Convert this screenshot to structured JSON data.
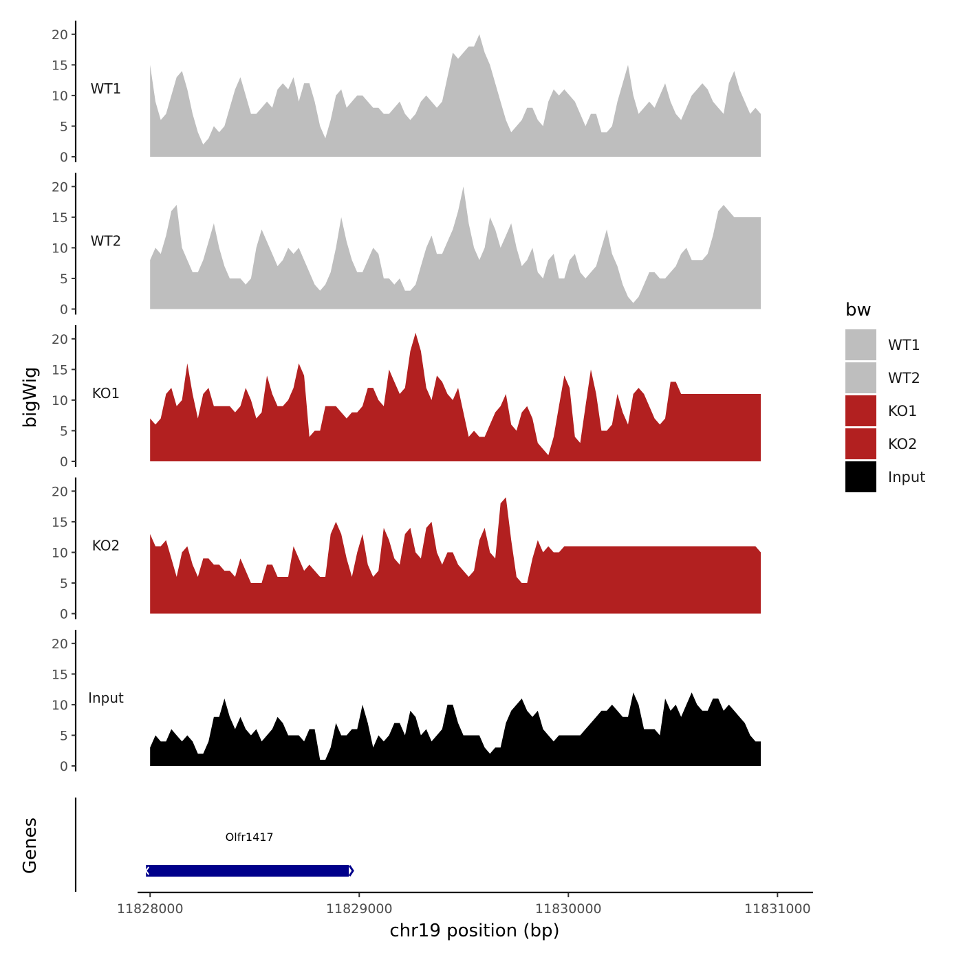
{
  "chart_data": {
    "type": "area",
    "title": "",
    "ylabel": "bigWig",
    "xlabel": "chr19 position (bp)",
    "genes_label": "Genes",
    "ylim": [
      0,
      22
    ],
    "yticks": [
      0,
      5,
      10,
      15,
      20
    ],
    "xlim": [
      11827940,
      11831170
    ],
    "xticks": [
      11828000,
      11829000,
      11830000,
      11831000
    ],
    "xtick_labels": [
      "11828000",
      "11829000",
      "11830000",
      "11831000"
    ],
    "legend": {
      "title": "bw",
      "position": "right",
      "items": [
        {
          "label": "WT1",
          "color": "#bebebe"
        },
        {
          "label": "WT2",
          "color": "#bebebe"
        },
        {
          "label": "KO1",
          "color": "#b22020"
        },
        {
          "label": "KO2",
          "color": "#b22020"
        },
        {
          "label": "Input",
          "color": "#000000"
        }
      ]
    },
    "series": [
      {
        "name": "WT1",
        "color": "#bebebe",
        "x_start": 11828000,
        "x_end": 11830920,
        "values": [
          15,
          9,
          6,
          7,
          10,
          13,
          14,
          11,
          7,
          4,
          2,
          3,
          5,
          4,
          5,
          8,
          11,
          13,
          10,
          7,
          7,
          8,
          9,
          8,
          11,
          12,
          11,
          13,
          9,
          12,
          12,
          9,
          5,
          3,
          6,
          10,
          11,
          8,
          9,
          10,
          10,
          9,
          8,
          8,
          7,
          7,
          8,
          9,
          7,
          6,
          7,
          9,
          10,
          9,
          8,
          9,
          13,
          17,
          16,
          17,
          18,
          18,
          20,
          17,
          15,
          12,
          9,
          6,
          4,
          5,
          6,
          8,
          8,
          6,
          5,
          9,
          11,
          10,
          11,
          10,
          9,
          7,
          5,
          7,
          7,
          4,
          4,
          5,
          9,
          12,
          15,
          10,
          7,
          8,
          9,
          8,
          10,
          12,
          9,
          7,
          6,
          8,
          10,
          11,
          12,
          11,
          9,
          8,
          7,
          12,
          14,
          11,
          9,
          7,
          8,
          7
        ]
      },
      {
        "name": "WT2",
        "color": "#bebebe",
        "x_start": 11828000,
        "x_end": 11830920,
        "values": [
          8,
          10,
          9,
          12,
          16,
          17,
          10,
          8,
          6,
          6,
          8,
          11,
          14,
          10,
          7,
          5,
          5,
          5,
          4,
          5,
          10,
          13,
          11,
          9,
          7,
          8,
          10,
          9,
          10,
          8,
          6,
          4,
          3,
          4,
          6,
          10,
          15,
          11,
          8,
          6,
          6,
          8,
          10,
          9,
          5,
          5,
          4,
          5,
          3,
          3,
          4,
          7,
          10,
          12,
          9,
          9,
          11,
          13,
          16,
          20,
          14,
          10,
          8,
          10,
          15,
          13,
          10,
          12,
          14,
          10,
          7,
          8,
          10,
          6,
          5,
          8,
          9,
          5,
          5,
          8,
          9,
          6,
          5,
          6,
          7,
          10,
          13,
          9,
          7,
          4,
          2,
          1,
          2,
          4,
          6,
          6,
          5,
          5,
          6,
          7,
          9,
          10,
          8,
          8,
          8,
          9,
          12,
          16,
          17,
          16,
          15,
          15,
          15,
          15,
          15,
          15
        ]
      },
      {
        "name": "KO1",
        "color": "#b22020",
        "x_start": 11828000,
        "x_end": 11830920,
        "values": [
          7,
          6,
          7,
          11,
          12,
          9,
          10,
          16,
          11,
          7,
          11,
          12,
          9,
          9,
          9,
          9,
          8,
          9,
          12,
          10,
          7,
          8,
          14,
          11,
          9,
          9,
          10,
          12,
          16,
          14,
          4,
          5,
          5,
          9,
          9,
          9,
          8,
          7,
          8,
          8,
          9,
          12,
          12,
          10,
          9,
          15,
          13,
          11,
          12,
          18,
          21,
          18,
          12,
          10,
          14,
          13,
          11,
          10,
          12,
          8,
          4,
          5,
          4,
          4,
          6,
          8,
          9,
          11,
          6,
          5,
          8,
          9,
          7,
          3,
          2,
          1,
          4,
          9,
          14,
          12,
          4,
          3,
          9,
          15,
          11,
          5,
          5,
          6,
          11,
          8,
          6,
          11,
          12,
          11,
          9,
          7,
          6,
          7,
          13,
          13,
          11,
          11,
          11,
          11,
          11,
          11,
          11,
          11,
          11,
          11,
          11,
          11,
          11,
          11,
          11,
          11
        ]
      },
      {
        "name": "KO2",
        "color": "#b22020",
        "x_start": 11828000,
        "x_end": 11830920,
        "values": [
          13,
          11,
          11,
          12,
          9,
          6,
          10,
          11,
          8,
          6,
          9,
          9,
          8,
          8,
          7,
          7,
          6,
          9,
          7,
          5,
          5,
          5,
          8,
          8,
          6,
          6,
          6,
          11,
          9,
          7,
          8,
          7,
          6,
          6,
          13,
          15,
          13,
          9,
          6,
          10,
          13,
          8,
          6,
          7,
          14,
          12,
          9,
          8,
          13,
          14,
          10,
          9,
          14,
          15,
          10,
          8,
          10,
          10,
          8,
          7,
          6,
          7,
          12,
          14,
          10,
          9,
          18,
          19,
          12,
          6,
          5,
          5,
          9,
          12,
          10,
          11,
          10,
          10,
          11,
          11,
          11,
          11,
          11,
          11,
          11,
          11,
          11,
          11,
          11,
          11,
          11,
          11,
          11,
          11,
          11,
          11,
          11,
          11,
          11,
          11,
          11,
          11,
          11,
          11,
          11,
          11,
          11,
          11,
          11,
          11,
          11,
          11,
          11,
          11,
          11,
          10
        ]
      },
      {
        "name": "Input",
        "color": "#000000",
        "x_start": 11828000,
        "x_end": 11830920,
        "values": [
          3,
          5,
          4,
          4,
          6,
          5,
          4,
          5,
          4,
          2,
          2,
          4,
          8,
          8,
          11,
          8,
          6,
          8,
          6,
          5,
          6,
          4,
          5,
          6,
          8,
          7,
          5,
          5,
          5,
          4,
          6,
          6,
          1,
          1,
          3,
          7,
          5,
          5,
          6,
          6,
          10,
          7,
          3,
          5,
          4,
          5,
          7,
          7,
          5,
          9,
          8,
          5,
          6,
          4,
          5,
          6,
          10,
          10,
          7,
          5,
          5,
          5,
          5,
          3,
          2,
          3,
          3,
          7,
          9,
          10,
          11,
          9,
          8,
          9,
          6,
          5,
          4,
          5,
          5,
          5,
          5,
          5,
          6,
          7,
          8,
          9,
          9,
          10,
          9,
          8,
          8,
          12,
          10,
          6,
          6,
          6,
          5,
          11,
          9,
          10,
          8,
          10,
          12,
          10,
          9,
          9,
          11,
          11,
          9,
          10,
          9,
          8,
          7,
          5,
          4,
          4
        ]
      }
    ],
    "gene_track": {
      "genes": [
        {
          "name": "Olfr1417",
          "start": 11828000,
          "end": 11828950,
          "strand": "-",
          "color": "#00008b"
        }
      ]
    }
  }
}
